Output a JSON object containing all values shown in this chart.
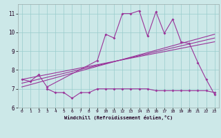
{
  "xlabel": "Windchill (Refroidissement éolien,°C)",
  "bg_color": "#cce8e8",
  "grid_color": "#99cccc",
  "line_color": "#993399",
  "xlim": [
    -0.5,
    23.5
  ],
  "ylim": [
    6.0,
    11.5
  ],
  "yticks": [
    6,
    7,
    8,
    9,
    10,
    11
  ],
  "xticks": [
    0,
    1,
    2,
    3,
    4,
    5,
    6,
    7,
    8,
    9,
    10,
    11,
    12,
    13,
    14,
    15,
    16,
    17,
    18,
    19,
    20,
    21,
    22,
    23
  ],
  "series1_x": [
    0,
    1,
    2,
    3,
    9,
    10,
    11,
    12,
    13,
    14,
    15,
    16,
    17,
    18,
    19,
    20,
    21,
    22,
    23
  ],
  "series1_y": [
    7.5,
    7.4,
    7.75,
    7.1,
    8.5,
    9.9,
    9.7,
    11.0,
    11.0,
    11.15,
    9.8,
    11.1,
    9.95,
    10.7,
    9.5,
    9.4,
    8.4,
    7.5,
    6.7
  ],
  "series2_x": [
    0,
    23
  ],
  "series2_y": [
    7.5,
    9.5
  ],
  "series3_x": [
    0,
    23
  ],
  "series3_y": [
    7.3,
    9.7
  ],
  "series4_x": [
    0,
    23
  ],
  "series4_y": [
    7.1,
    9.9
  ],
  "series5_x": [
    3,
    4,
    5,
    6,
    7,
    8,
    9,
    10,
    11,
    12,
    13,
    14,
    15,
    16,
    17,
    18,
    19,
    20,
    21,
    22,
    23
  ],
  "series5_y": [
    7.0,
    6.8,
    6.8,
    6.5,
    6.8,
    6.8,
    7.0,
    7.0,
    7.0,
    7.0,
    7.0,
    7.0,
    7.0,
    6.9,
    6.9,
    6.9,
    6.9,
    6.9,
    6.9,
    6.9,
    6.8
  ],
  "fig_w": 3.2,
  "fig_h": 2.0,
  "dpi": 100
}
